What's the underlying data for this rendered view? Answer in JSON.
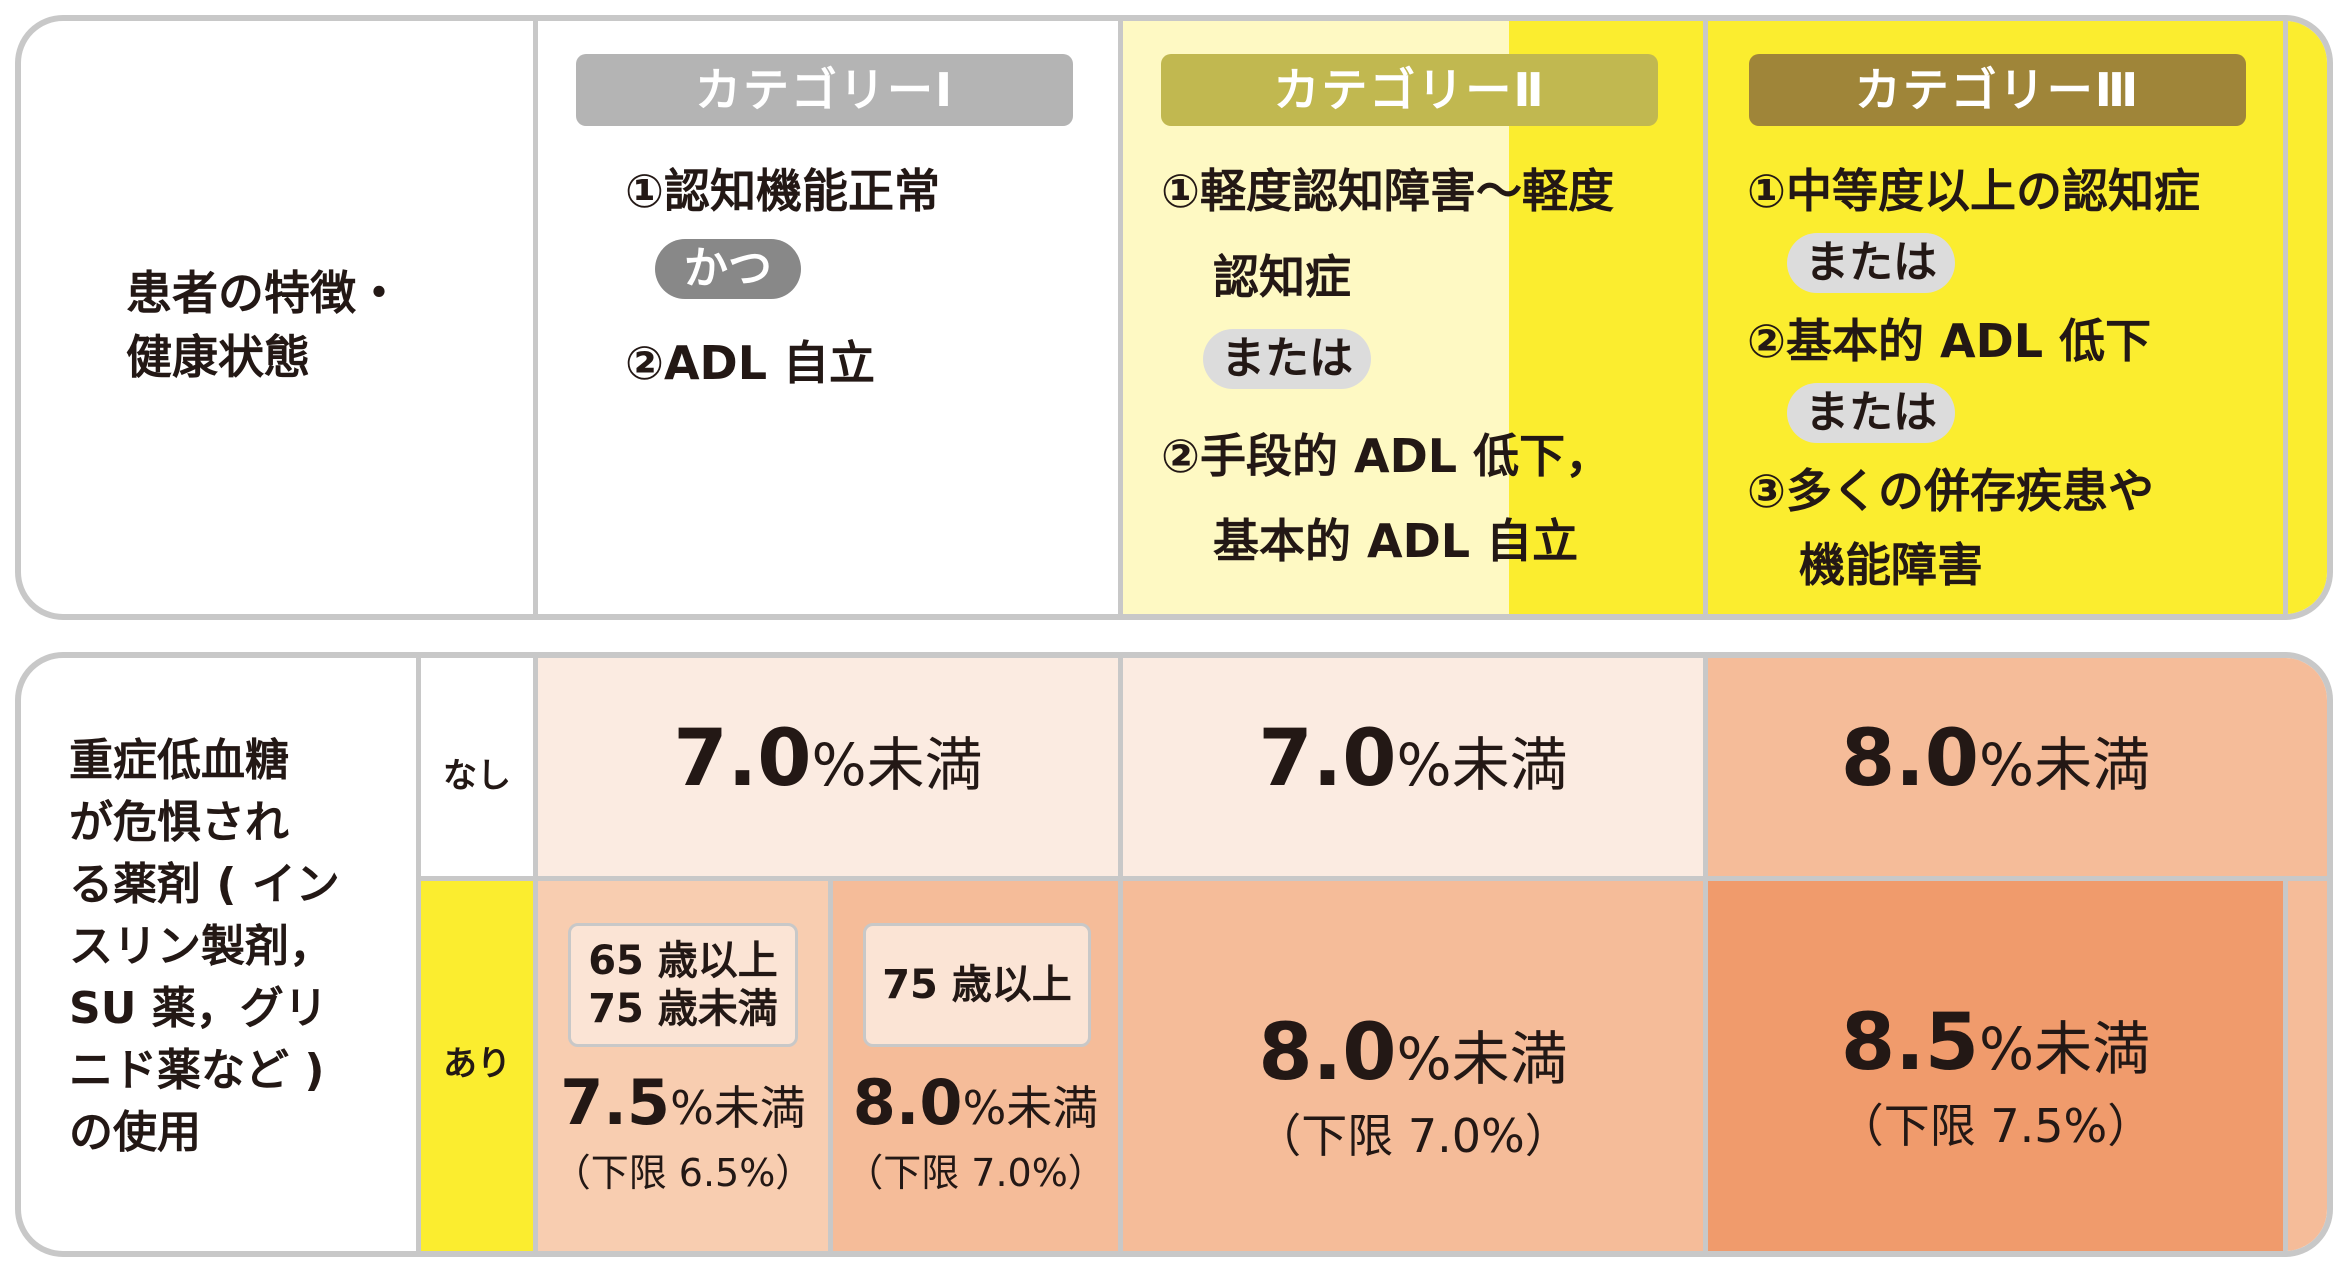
{
  "header": {
    "row_label": [
      "患者の特徴・",
      "健康状態"
    ],
    "categories": [
      {
        "label": "カテゴリーⅠ",
        "color": "#b4b4b4"
      },
      {
        "label": "カテゴリーⅡ",
        "color": "#c1b850"
      },
      {
        "label": "カテゴリーⅢ",
        "color": "#9f8539"
      }
    ]
  },
  "criteria": {
    "cat1": {
      "line1": "①認知機能正常",
      "conj": "かつ",
      "line2": "②ADL 自立"
    },
    "cat2": {
      "line1": "①軽度認知障害～軽度",
      "line1b": "認知症",
      "conj": "または",
      "line2": "②手段的 ADL 低下，",
      "line2b": "基本的 ADL 自立"
    },
    "cat3": {
      "line1": "①中等度以上の認知症",
      "conj1": "または",
      "line2": "②基本的 ADL 低下",
      "conj2": "または",
      "line3": "③多くの併存疾患や",
      "line3b": "機能障害"
    }
  },
  "drug_row": {
    "label": [
      "重症低血糖",
      "が危惧され",
      "る薬剤 ( イン",
      "スリン製剤，",
      "SU 薬，グリ",
      "ニド薬など )",
      "の使用"
    ],
    "none_label": "なし",
    "yes_label": "あり"
  },
  "targets": {
    "none": [
      {
        "value": "7.0",
        "unit": "%未満"
      },
      {
        "value": "7.0",
        "unit": "%未満"
      },
      {
        "value": "8.0",
        "unit": "%未満"
      }
    ],
    "yes": {
      "cat1_65_75": {
        "age": [
          "65 歳以上",
          "75 歳未満"
        ],
        "value": "7.5",
        "unit": "%未満",
        "lower": "（下限 6.5%）"
      },
      "cat1_75": {
        "age": [
          "75 歳以上"
        ],
        "value": "8.0",
        "unit": "%未満",
        "lower": "（下限 7.0%）"
      },
      "cat2": {
        "value": "8.0",
        "unit": "%未満",
        "lower": "（下限 7.0%）"
      },
      "cat3": {
        "value": "8.5",
        "unit": "%未満",
        "lower": "（下限 7.5%）"
      }
    }
  },
  "colors": {
    "cat2_bg": "#fef9c3",
    "cat3_bg": "#fbed2f",
    "none_light": "#fbebe1",
    "none_mid": "#f5bc99",
    "yes_light": "#f8cdb0",
    "yes_mid": "#f5bc99",
    "yes_dark": "#f09b6c",
    "yes_label_bg": "#fbed2f"
  }
}
